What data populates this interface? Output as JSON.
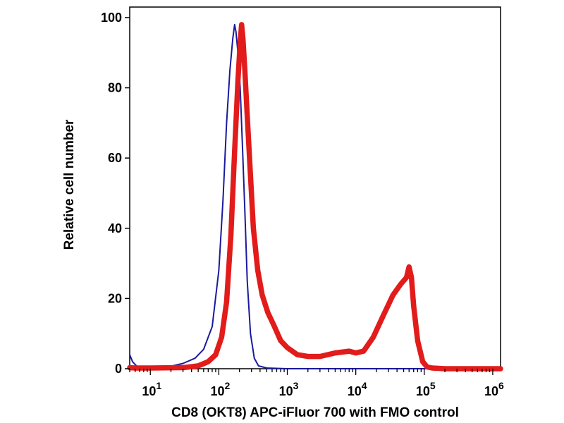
{
  "chart_data": {
    "type": "line",
    "title": "",
    "xlabel": "CD8 (OKT8) APC-iFluor 700 with FMO control",
    "ylabel": "Relative cell number",
    "x_scale": "log",
    "xlim": [
      5,
      1300000
    ],
    "ylim": [
      0,
      103
    ],
    "yticks": [
      0,
      20,
      40,
      60,
      80,
      100
    ],
    "xticks": [
      {
        "base": "10",
        "exp": "1",
        "value": 10
      },
      {
        "base": "10",
        "exp": "2",
        "value": 100
      },
      {
        "base": "10",
        "exp": "3",
        "value": 1000
      },
      {
        "base": "10",
        "exp": "4",
        "value": 10000
      },
      {
        "base": "10",
        "exp": "5",
        "value": 100000
      },
      {
        "base": "10",
        "exp": "6",
        "value": 1000000
      }
    ],
    "grid": false,
    "series": [
      {
        "color": "#1a1a9c",
        "x": [
          5,
          5.5,
          6.5,
          9,
          12,
          20,
          30,
          45,
          60,
          80,
          100,
          115,
          130,
          145,
          160,
          170,
          178,
          190,
          205,
          220,
          240,
          260,
          290,
          330,
          380,
          500,
          1000,
          10000,
          100000,
          1000000,
          1300000
        ],
        "values": [
          4,
          2,
          0.5,
          0.2,
          0.3,
          0.7,
          1.5,
          3,
          5.5,
          12,
          28,
          48,
          70,
          85,
          94,
          98,
          96,
          90,
          80,
          65,
          45,
          25,
          10,
          3,
          0.8,
          0.2,
          0,
          0,
          0,
          0,
          0
        ]
      },
      {
        "color": "#e21b1b",
        "x": [
          5,
          6,
          10,
          30,
          50,
          70,
          90,
          110,
          130,
          150,
          170,
          190,
          205,
          215,
          225,
          240,
          260,
          290,
          320,
          370,
          430,
          520,
          650,
          800,
          1000,
          1400,
          2000,
          3000,
          5000,
          8000,
          10000,
          13000,
          18000,
          25000,
          35000,
          45000,
          55000,
          60000,
          65000,
          70000,
          80000,
          95000,
          110000,
          130000,
          200000,
          1000000,
          1300000
        ],
        "values": [
          0.3,
          0.2,
          0.2,
          0.3,
          0.8,
          2,
          4,
          9,
          19,
          38,
          62,
          82,
          93,
          98,
          94,
          85,
          72,
          55,
          40,
          28,
          21,
          16,
          12,
          8,
          6,
          4,
          3.5,
          3.5,
          4.5,
          5,
          4.5,
          5,
          9,
          15,
          21,
          24,
          26,
          29,
          26,
          18,
          8,
          2,
          0.5,
          0.2,
          0,
          0,
          0
        ]
      }
    ]
  }
}
